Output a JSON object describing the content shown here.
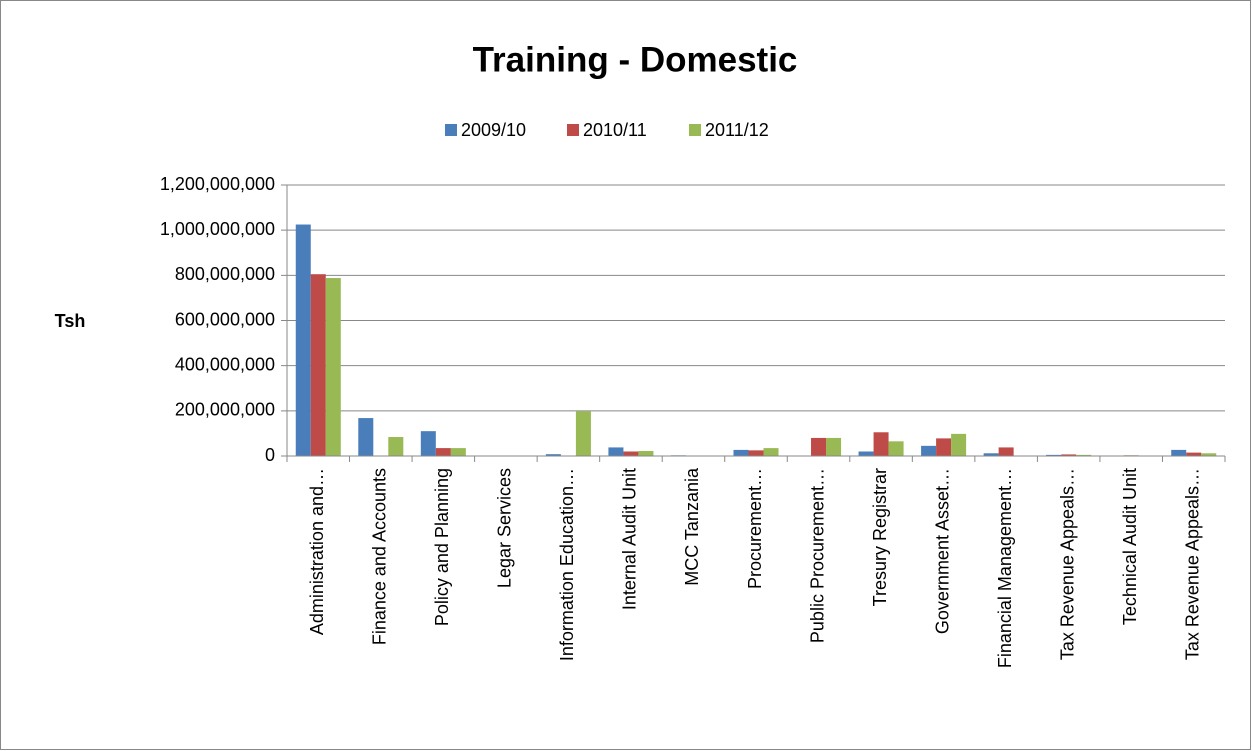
{
  "chart_data": {
    "type": "bar",
    "title": "Training - Domestic",
    "y_label": "Tsh",
    "categories": [
      "Administration and…",
      "Finance and Accounts",
      "Policy and Planning",
      "Legar Services",
      "Information Education…",
      "Internal Audit Unit",
      "MCC Tanzania",
      "Procurement…",
      "Public Procurement…",
      "Tresury Registrar",
      "Government Asset…",
      "Financial Management…",
      "Tax Revenue Appeals…",
      "Technical Audit Unit",
      "Tax Revenue Appeals…"
    ],
    "series": [
      {
        "name": "2009/10",
        "color": "#4a7ebb",
        "values": [
          1025000000,
          168000000,
          110000000,
          0,
          8000000,
          38000000,
          3000000,
          27000000,
          0,
          20000000,
          45000000,
          12000000,
          5000000,
          0,
          27000000
        ]
      },
      {
        "name": "2010/11",
        "color": "#be4b48",
        "values": [
          805000000,
          0,
          35000000,
          0,
          0,
          20000000,
          0,
          25000000,
          80000000,
          105000000,
          78000000,
          38000000,
          7000000,
          3000000,
          15000000
        ]
      },
      {
        "name": "2011/12",
        "color": "#98b954",
        "values": [
          788000000,
          84000000,
          35000000,
          0,
          198000000,
          22000000,
          0,
          35000000,
          80000000,
          65000000,
          98000000,
          0,
          5000000,
          2000000,
          12000000
        ]
      }
    ],
    "ylim": [
      0,
      1200000000
    ],
    "yticks": [
      0,
      {
        "value": 200000000,
        "label": "200,000,000"
      },
      {
        "value": 400000000,
        "label": "400,000,000"
      },
      {
        "value": 600000000,
        "label": "600,000,000"
      },
      {
        "value": 800000000,
        "label": "800,000,000"
      },
      {
        "value": 1000000000,
        "label": "1,000,000,000"
      },
      {
        "value": 1200000000,
        "label": "1,200,000,000"
      }
    ],
    "grid": true,
    "legend": "top"
  }
}
